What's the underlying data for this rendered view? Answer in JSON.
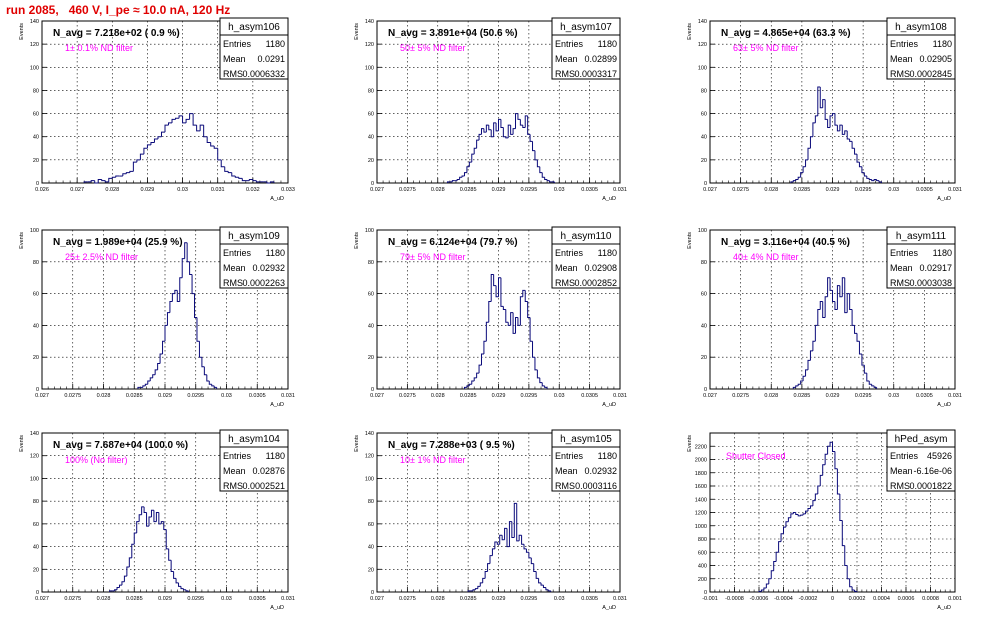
{
  "header": {
    "run_title": "run 2085,   460 V, I_pe ≈ 10.0 nA, 120 Hz"
  },
  "colors": {
    "histogram": "#0a0a7a",
    "annotation": "#ff00ff",
    "title": "#e00000",
    "grid": "#000000"
  },
  "common": {
    "y_axis_label": "Events",
    "x_axis_label": "A_uD"
  },
  "chart_data": [
    {
      "type": "bar",
      "name": "h_asym106",
      "avg_text": "N_avg = 7.218e+02 ( 0.9 %)",
      "filter_text": "1± 0.1% ND filter",
      "stats": {
        "entries": "1180",
        "mean": "0.0291",
        "rms": "0.0006332"
      },
      "xlim": [
        0.026,
        0.033
      ],
      "ylim": [
        0,
        140
      ],
      "xticks": [
        0.026,
        0.027,
        0.028,
        0.029,
        0.03,
        0.031,
        0.032,
        0.033
      ],
      "xtick_labels": [
        "0.026",
        "0.027",
        "0.028",
        "0.029",
        "0.03",
        "0.031",
        "0.032",
        "0.033"
      ],
      "yticks": [
        0,
        20,
        40,
        60,
        80,
        100,
        120,
        140
      ],
      "ytick_labels": [
        "0",
        "20",
        "40",
        "60",
        "80",
        "100",
        "120",
        "140"
      ],
      "bins": {
        "start": 0.0272,
        "step": 0.0001,
        "values": [
          1,
          1,
          2,
          0,
          3,
          2,
          1,
          4,
          5,
          6,
          6,
          8,
          9,
          10,
          18,
          20,
          25,
          30,
          33,
          35,
          38,
          40,
          44,
          50,
          52,
          55,
          56,
          58,
          52,
          55,
          60,
          50,
          45,
          50,
          40,
          35,
          32,
          30,
          20,
          14,
          10,
          9,
          6,
          5,
          4,
          2,
          2,
          3,
          2,
          1,
          1,
          1,
          0,
          1
        ]
      }
    },
    {
      "type": "bar",
      "name": "h_asym107",
      "avg_text": "N_avg = 3.891e+04 (50.6 %)",
      "filter_text": "50± 5% ND filter",
      "stats": {
        "entries": "1180",
        "mean": "0.02899",
        "rms": "0.0003317"
      },
      "xlim": [
        0.027,
        0.031
      ],
      "ylim": [
        0,
        140
      ],
      "xticks": [
        0.027,
        0.0275,
        0.028,
        0.0285,
        0.029,
        0.0295,
        0.03,
        0.0305,
        0.031
      ],
      "xtick_labels": [
        "0.027",
        "0.0275",
        "0.028",
        "0.0285",
        "0.029",
        "0.0295",
        "0.03",
        "0.0305",
        "0.031"
      ],
      "yticks": [
        0,
        20,
        40,
        60,
        80,
        100,
        120,
        140
      ],
      "ytick_labels": [
        "0",
        "20",
        "40",
        "60",
        "80",
        "100",
        "120",
        "140"
      ],
      "bins": {
        "start": 0.02816,
        "step": 4e-05,
        "values": [
          1,
          1,
          2,
          2,
          3,
          5,
          6,
          9,
          14,
          18,
          25,
          30,
          37,
          42,
          47,
          44,
          50,
          46,
          40,
          52,
          45,
          55,
          48,
          40,
          39,
          50,
          42,
          47,
          60,
          55,
          50,
          48,
          58,
          42,
          36,
          28,
          20,
          14,
          9,
          5,
          3,
          2,
          1,
          1
        ]
      }
    },
    {
      "type": "bar",
      "name": "h_asym108",
      "avg_text": "N_avg = 4.865e+04 (63.3 %)",
      "filter_text": "63± 5% ND filter",
      "stats": {
        "entries": "1180",
        "mean": "0.02905",
        "rms": "0.0002845"
      },
      "xlim": [
        0.027,
        0.031
      ],
      "ylim": [
        0,
        140
      ],
      "xticks": [
        0.027,
        0.0275,
        0.028,
        0.0285,
        0.029,
        0.0295,
        0.03,
        0.0305,
        0.031
      ],
      "xtick_labels": [
        "0.027",
        "0.0275",
        "0.028",
        "0.0285",
        "0.029",
        "0.0295",
        "0.03",
        "0.0305",
        "0.031"
      ],
      "yticks": [
        0,
        20,
        40,
        60,
        80,
        100,
        120,
        140
      ],
      "ytick_labels": [
        "0",
        "20",
        "40",
        "60",
        "80",
        "100",
        "120",
        "140"
      ],
      "bins": {
        "start": 0.02832,
        "step": 4e-05,
        "values": [
          1,
          2,
          3,
          5,
          9,
          14,
          20,
          30,
          40,
          52,
          58,
          83,
          65,
          72,
          55,
          48,
          58,
          60,
          50,
          45,
          50,
          42,
          45,
          38,
          36,
          30,
          25,
          18,
          14,
          9,
          6,
          4,
          3,
          2,
          3,
          2,
          1
        ]
      }
    },
    {
      "type": "bar",
      "name": "h_asym109",
      "avg_text": "N_avg = 1.989e+04 (25.9 %)",
      "filter_text": "25± 2.5% ND filter",
      "stats": {
        "entries": "1180",
        "mean": "0.02932",
        "rms": "0.0002263"
      },
      "xlim": [
        0.027,
        0.031
      ],
      "ylim": [
        0,
        100
      ],
      "xticks": [
        0.027,
        0.0275,
        0.028,
        0.0285,
        0.029,
        0.0295,
        0.03,
        0.0305,
        0.031
      ],
      "xtick_labels": [
        "0.027",
        "0.0275",
        "0.028",
        "0.0285",
        "0.029",
        "0.0295",
        "0.03",
        "0.0305",
        "0.031"
      ],
      "yticks": [
        0,
        20,
        40,
        60,
        80,
        100
      ],
      "ytick_labels": [
        "0",
        "20",
        "40",
        "60",
        "80",
        "100"
      ],
      "bins": {
        "start": 0.02856,
        "step": 4e-05,
        "values": [
          1,
          1,
          2,
          3,
          5,
          7,
          9,
          12,
          16,
          22,
          30,
          40,
          48,
          55,
          60,
          62,
          55,
          70,
          82,
          92,
          80,
          72,
          60,
          45,
          30,
          20,
          14,
          9,
          5,
          3,
          2,
          1
        ]
      }
    },
    {
      "type": "bar",
      "name": "h_asym110",
      "avg_text": "N_avg = 6.124e+04 (79.7 %)",
      "filter_text": "79± 5% ND filter",
      "stats": {
        "entries": "1180",
        "mean": "0.02908",
        "rms": "0.0002852"
      },
      "xlim": [
        0.027,
        0.031
      ],
      "ylim": [
        0,
        100
      ],
      "xticks": [
        0.027,
        0.0275,
        0.028,
        0.0285,
        0.029,
        0.0295,
        0.03,
        0.0305,
        0.031
      ],
      "xtick_labels": [
        "0.027",
        "0.0275",
        "0.028",
        "0.0285",
        "0.029",
        "0.0295",
        "0.03",
        "0.0305",
        "0.031"
      ],
      "yticks": [
        0,
        20,
        40,
        60,
        80,
        100
      ],
      "ytick_labels": [
        "0",
        "20",
        "40",
        "60",
        "80",
        "100"
      ],
      "bins": {
        "start": 0.02844,
        "step": 4e-05,
        "values": [
          1,
          2,
          3,
          5,
          7,
          10,
          15,
          22,
          30,
          42,
          55,
          72,
          65,
          58,
          70,
          52,
          50,
          42,
          40,
          48,
          35,
          45,
          40,
          58,
          62,
          55,
          45,
          30,
          20,
          12,
          7,
          4,
          2,
          1
        ]
      }
    },
    {
      "type": "bar",
      "name": "h_asym111",
      "avg_text": "N_avg = 3.116e+04 (40.5 %)",
      "filter_text": "40± 4% ND filter",
      "stats": {
        "entries": "1180",
        "mean": "0.02917",
        "rms": "0.0003038"
      },
      "xlim": [
        0.027,
        0.031
      ],
      "ylim": [
        0,
        100
      ],
      "xticks": [
        0.027,
        0.0275,
        0.028,
        0.0285,
        0.029,
        0.0295,
        0.03,
        0.0305,
        0.031
      ],
      "xtick_labels": [
        "0.027",
        "0.0275",
        "0.028",
        "0.0285",
        "0.029",
        "0.0295",
        "0.03",
        "0.0305",
        "0.031"
      ],
      "yticks": [
        0,
        20,
        40,
        60,
        80,
        100
      ],
      "ytick_labels": [
        "0",
        "20",
        "40",
        "60",
        "80",
        "100"
      ],
      "bins": {
        "start": 0.02836,
        "step": 4e-05,
        "values": [
          1,
          2,
          3,
          5,
          8,
          12,
          18,
          24,
          30,
          40,
          50,
          55,
          45,
          58,
          70,
          62,
          55,
          50,
          65,
          58,
          70,
          48,
          60,
          50,
          40,
          35,
          30,
          22,
          15,
          10,
          5,
          3,
          2,
          1
        ]
      }
    },
    {
      "type": "bar",
      "name": "h_asym104",
      "avg_text": "N_avg = 7.687e+04 (100.0 %)",
      "filter_text": "100% (No filter)",
      "stats": {
        "entries": "1180",
        "mean": "0.02876",
        "rms": "0.0002521"
      },
      "xlim": [
        0.027,
        0.031
      ],
      "ylim": [
        0,
        140
      ],
      "xticks": [
        0.027,
        0.0275,
        0.028,
        0.0285,
        0.029,
        0.0295,
        0.03,
        0.0305,
        0.031
      ],
      "xtick_labels": [
        "0.027",
        "0.0275",
        "0.028",
        "0.0285",
        "0.029",
        "0.0295",
        "0.03",
        "0.0305",
        "0.031"
      ],
      "yticks": [
        0,
        20,
        40,
        60,
        80,
        100,
        120,
        140
      ],
      "ytick_labels": [
        "0",
        "20",
        "40",
        "60",
        "80",
        "100",
        "120",
        "140"
      ],
      "bins": {
        "start": 0.0281,
        "step": 4e-05,
        "values": [
          1,
          1,
          2,
          4,
          6,
          9,
          14,
          22,
          30,
          42,
          52,
          62,
          68,
          75,
          70,
          58,
          66,
          72,
          62,
          70,
          60,
          62,
          55,
          38,
          28,
          18,
          12,
          8,
          5,
          3,
          2,
          1
        ]
      }
    },
    {
      "type": "bar",
      "name": "h_asym105",
      "avg_text": "N_avg = 7.288e+03 ( 9.5 %)",
      "filter_text": "10± 1% ND filter",
      "stats": {
        "entries": "1180",
        "mean": "0.02932",
        "rms": "0.0003116"
      },
      "xlim": [
        0.027,
        0.031
      ],
      "ylim": [
        0,
        140
      ],
      "xticks": [
        0.027,
        0.0275,
        0.028,
        0.0285,
        0.029,
        0.0295,
        0.03,
        0.0305,
        0.031
      ],
      "xtick_labels": [
        "0.027",
        "0.0275",
        "0.028",
        "0.0285",
        "0.029",
        "0.0295",
        "0.03",
        "0.0305",
        "0.031"
      ],
      "yticks": [
        0,
        20,
        40,
        60,
        80,
        100,
        120,
        140
      ],
      "ytick_labels": [
        "0",
        "20",
        "40",
        "60",
        "80",
        "100",
        "120",
        "140"
      ],
      "bins": {
        "start": 0.0285,
        "step": 4e-05,
        "values": [
          1,
          1,
          2,
          3,
          5,
          8,
          12,
          18,
          25,
          32,
          38,
          44,
          42,
          50,
          46,
          56,
          40,
          62,
          48,
          78,
          45,
          50,
          42,
          38,
          35,
          30,
          25,
          18,
          12,
          8,
          6,
          4,
          2,
          1
        ]
      }
    },
    {
      "type": "bar",
      "name": "hPed_asym",
      "avg_text": "",
      "filter_text": "Shutter Closed",
      "stats": {
        "entries": "45926",
        "mean": "-6.16e-06",
        "rms": "0.0001822"
      },
      "xlim": [
        -0.001,
        0.001
      ],
      "ylim": [
        0,
        2400
      ],
      "xticks": [
        -0.001,
        -0.0008,
        -0.0006,
        -0.0004,
        -0.0002,
        0,
        0.0002,
        0.0004,
        0.0006,
        0.0008,
        0.001
      ],
      "xtick_labels": [
        "-0.001",
        "-0.0008",
        "-0.0006",
        "-0.0004",
        "-0.0002",
        "0",
        "0.0002",
        "0.0004",
        "0.0006",
        "0.0008",
        "0.001"
      ],
      "yticks": [
        0,
        200,
        400,
        600,
        800,
        1000,
        1200,
        1400,
        1600,
        1800,
        2000,
        2200
      ],
      "ytick_labels": [
        "0",
        "200",
        "400",
        "600",
        "800",
        "1000",
        "1200",
        "1400",
        "1600",
        "1800",
        "2000",
        "2200"
      ],
      "bins": {
        "start": -0.0006,
        "step": 2e-05,
        "values": [
          10,
          30,
          60,
          120,
          200,
          320,
          460,
          600,
          760,
          880,
          980,
          1060,
          1120,
          1180,
          1200,
          1170,
          1150,
          1160,
          1180,
          1220,
          1260,
          1300,
          1380,
          1480,
          1600,
          1760,
          1920,
          2080,
          2200,
          2260,
          2120,
          1860,
          1480,
          1080,
          700,
          400,
          200,
          80,
          30,
          10
        ]
      }
    }
  ]
}
